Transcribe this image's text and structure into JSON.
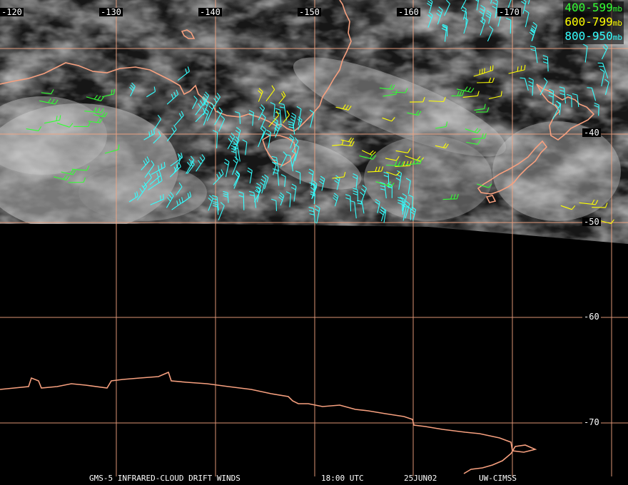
{
  "map": {
    "longitude_labels": [
      "-120",
      "-130",
      "-140",
      "-150",
      "-160",
      "-170"
    ],
    "latitude_labels": [
      "-40",
      "-50",
      "-60",
      "-70"
    ],
    "grid_color": "#f4a582",
    "coast_color": "#f7a07f"
  },
  "legend": {
    "bands": [
      {
        "range": "400-599",
        "unit": "mb",
        "color": "#33ff33"
      },
      {
        "range": "600-799",
        "unit": "mb",
        "color": "#ffff00"
      },
      {
        "range": "800-950",
        "unit": "mb",
        "color": "#33ffff"
      }
    ]
  },
  "caption": {
    "product": "GMS-5 INFRARED-CLOUD DRIFT WINDS",
    "time": "18:00 UTC",
    "date": "25JUN02",
    "source": "UW-CIMSS"
  }
}
